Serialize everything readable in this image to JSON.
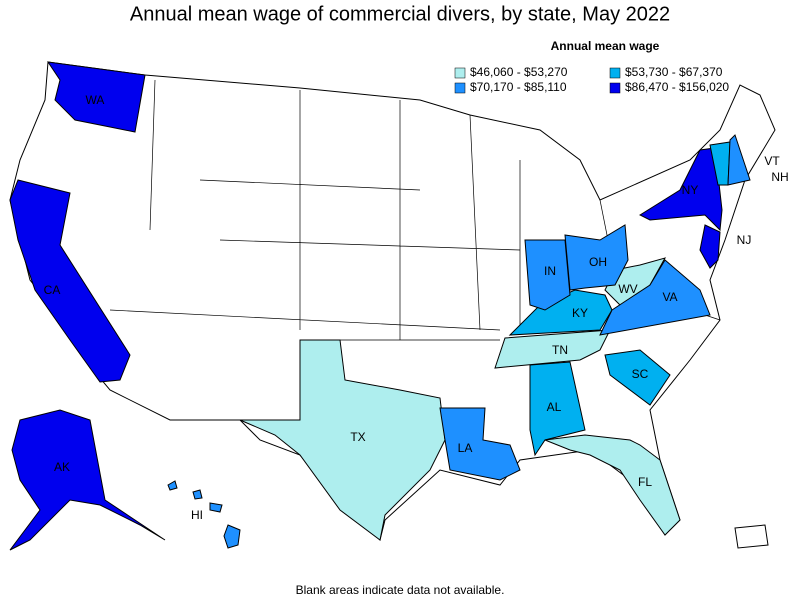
{
  "title": "Annual mean wage of commercial divers, by state, May 2022",
  "legend": {
    "title": "Annual mean wage",
    "entries": [
      {
        "label": "$46,060 - $53,270",
        "color": "#aeeeee"
      },
      {
        "label": "$53,730 - $67,370",
        "color": "#00b0f0"
      },
      {
        "label": "$70,170 - $85,110",
        "color": "#1e90ff"
      },
      {
        "label": "$86,470 - $156,020",
        "color": "#0000ee"
      }
    ]
  },
  "states": [
    {
      "abbr": "WA",
      "color": "#0000ee"
    },
    {
      "abbr": "CA",
      "color": "#0000ee"
    },
    {
      "abbr": "AK",
      "color": "#0000ee"
    },
    {
      "abbr": "HI",
      "color": "#1e90ff"
    },
    {
      "abbr": "TX",
      "color": "#aeeeee"
    },
    {
      "abbr": "LA",
      "color": "#1e90ff"
    },
    {
      "abbr": "AL",
      "color": "#00b0f0"
    },
    {
      "abbr": "FL",
      "color": "#aeeeee"
    },
    {
      "abbr": "TN",
      "color": "#aeeeee"
    },
    {
      "abbr": "SC",
      "color": "#00b0f0"
    },
    {
      "abbr": "KY",
      "color": "#00b0f0"
    },
    {
      "abbr": "WV",
      "color": "#aeeeee"
    },
    {
      "abbr": "VA",
      "color": "#1e90ff"
    },
    {
      "abbr": "IN",
      "color": "#1e90ff"
    },
    {
      "abbr": "OH",
      "color": "#1e90ff"
    },
    {
      "abbr": "NY",
      "color": "#0000ee"
    },
    {
      "abbr": "NJ",
      "color": "#0000ee"
    },
    {
      "abbr": "VT",
      "color": "#00b0f0"
    },
    {
      "abbr": "NH",
      "color": "#1e90ff"
    }
  ],
  "footnote": "Blank areas indicate data not available."
}
